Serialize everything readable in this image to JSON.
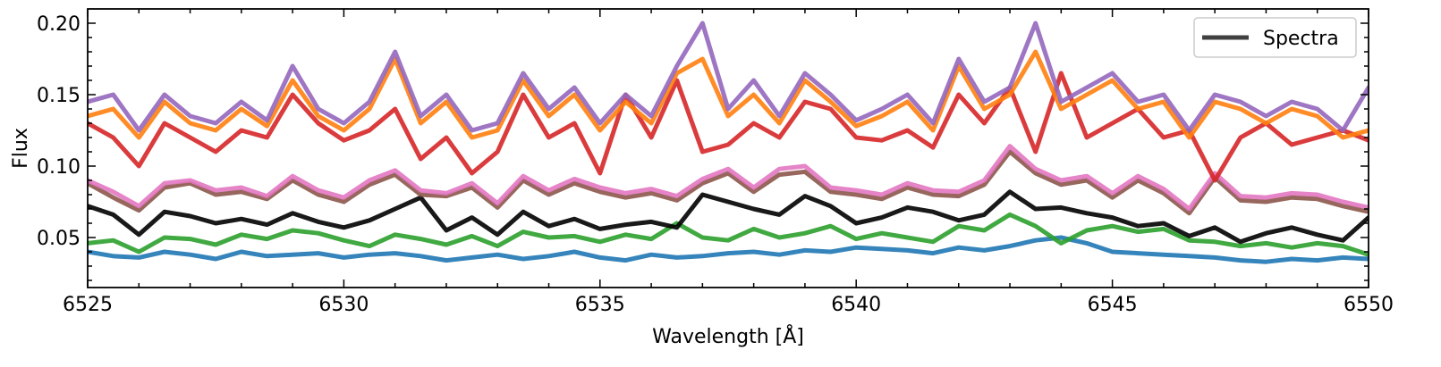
{
  "chart_data": {
    "type": "line",
    "title": "",
    "xlabel": "Wavelength [Å]",
    "ylabel": "Flux",
    "xlim": [
      6525,
      6550
    ],
    "ylim": [
      0.015,
      0.21
    ],
    "x_ticks": [
      6525,
      6530,
      6535,
      6540,
      6545,
      6550
    ],
    "x_tick_labels": [
      "6525",
      "6530",
      "6535",
      "6540",
      "6545",
      "6550"
    ],
    "y_ticks": [
      0.05,
      0.1,
      0.15,
      0.2
    ],
    "y_tick_labels": [
      "0.05",
      "0.10",
      "0.15",
      "0.20"
    ],
    "grid": false,
    "legend": {
      "position": "top-right",
      "entries": [
        {
          "label": "Spectra",
          "color": "#404040"
        }
      ]
    },
    "x": [
      6525.0,
      6525.5,
      6526.0,
      6526.5,
      6527.0,
      6527.5,
      6528.0,
      6528.5,
      6529.0,
      6529.5,
      6530.0,
      6530.5,
      6531.0,
      6531.5,
      6532.0,
      6532.5,
      6533.0,
      6533.5,
      6534.0,
      6534.5,
      6535.0,
      6535.5,
      6536.0,
      6536.5,
      6537.0,
      6537.5,
      6538.0,
      6538.5,
      6539.0,
      6539.5,
      6540.0,
      6540.5,
      6541.0,
      6541.5,
      6542.0,
      6542.5,
      6543.0,
      6543.5,
      6544.0,
      6544.5,
      6545.0,
      6545.5,
      6546.0,
      6546.5,
      6547.0,
      6547.5,
      6548.0,
      6548.5,
      6549.0,
      6549.5,
      6550.0
    ],
    "series": [
      {
        "color": "#1f77b4",
        "values": [
          0.04,
          0.037,
          0.036,
          0.04,
          0.038,
          0.035,
          0.04,
          0.037,
          0.038,
          0.039,
          0.036,
          0.038,
          0.039,
          0.037,
          0.034,
          0.036,
          0.038,
          0.035,
          0.037,
          0.04,
          0.036,
          0.034,
          0.038,
          0.036,
          0.037,
          0.039,
          0.04,
          0.038,
          0.041,
          0.04,
          0.043,
          0.042,
          0.041,
          0.039,
          0.043,
          0.041,
          0.044,
          0.048,
          0.05,
          0.046,
          0.04,
          0.039,
          0.038,
          0.037,
          0.036,
          0.034,
          0.033,
          0.035,
          0.034,
          0.036,
          0.035
        ]
      },
      {
        "color": "#2ca02c",
        "values": [
          0.046,
          0.048,
          0.04,
          0.05,
          0.049,
          0.045,
          0.052,
          0.049,
          0.055,
          0.053,
          0.048,
          0.044,
          0.052,
          0.049,
          0.045,
          0.051,
          0.044,
          0.054,
          0.05,
          0.051,
          0.047,
          0.052,
          0.049,
          0.06,
          0.05,
          0.048,
          0.056,
          0.05,
          0.053,
          0.058,
          0.049,
          0.053,
          0.05,
          0.047,
          0.058,
          0.055,
          0.066,
          0.058,
          0.046,
          0.055,
          0.058,
          0.054,
          0.056,
          0.048,
          0.047,
          0.044,
          0.046,
          0.043,
          0.046,
          0.044,
          0.038
        ]
      },
      {
        "color": "#000000",
        "values": [
          0.072,
          0.066,
          0.052,
          0.068,
          0.065,
          0.06,
          0.063,
          0.059,
          0.067,
          0.061,
          0.057,
          0.062,
          0.07,
          0.078,
          0.055,
          0.064,
          0.052,
          0.068,
          0.058,
          0.063,
          0.056,
          0.059,
          0.061,
          0.057,
          0.08,
          0.075,
          0.07,
          0.066,
          0.079,
          0.072,
          0.06,
          0.064,
          0.071,
          0.068,
          0.062,
          0.066,
          0.082,
          0.07,
          0.071,
          0.067,
          0.064,
          0.058,
          0.06,
          0.051,
          0.057,
          0.047,
          0.053,
          0.057,
          0.052,
          0.048,
          0.064
        ]
      },
      {
        "color": "#8c564b",
        "values": [
          0.088,
          0.078,
          0.069,
          0.085,
          0.088,
          0.08,
          0.082,
          0.077,
          0.09,
          0.08,
          0.075,
          0.087,
          0.094,
          0.08,
          0.079,
          0.085,
          0.071,
          0.09,
          0.08,
          0.088,
          0.082,
          0.078,
          0.081,
          0.076,
          0.088,
          0.095,
          0.082,
          0.094,
          0.096,
          0.082,
          0.08,
          0.077,
          0.085,
          0.08,
          0.079,
          0.087,
          0.11,
          0.095,
          0.087,
          0.09,
          0.078,
          0.09,
          0.081,
          0.067,
          0.092,
          0.076,
          0.075,
          0.078,
          0.077,
          0.072,
          0.068
        ]
      },
      {
        "color": "#e377c2",
        "values": [
          0.09,
          0.082,
          0.072,
          0.088,
          0.09,
          0.083,
          0.085,
          0.079,
          0.093,
          0.083,
          0.078,
          0.09,
          0.097,
          0.083,
          0.081,
          0.088,
          0.074,
          0.093,
          0.083,
          0.091,
          0.085,
          0.081,
          0.084,
          0.079,
          0.091,
          0.098,
          0.085,
          0.098,
          0.1,
          0.085,
          0.083,
          0.08,
          0.088,
          0.083,
          0.082,
          0.09,
          0.114,
          0.098,
          0.09,
          0.093,
          0.081,
          0.093,
          0.084,
          0.07,
          0.095,
          0.079,
          0.078,
          0.081,
          0.08,
          0.075,
          0.071
        ]
      },
      {
        "color": "#d62728",
        "values": [
          0.13,
          0.12,
          0.1,
          0.13,
          0.12,
          0.11,
          0.125,
          0.12,
          0.15,
          0.13,
          0.118,
          0.125,
          0.14,
          0.105,
          0.12,
          0.095,
          0.11,
          0.15,
          0.12,
          0.13,
          0.095,
          0.15,
          0.12,
          0.16,
          0.11,
          0.115,
          0.13,
          0.12,
          0.145,
          0.14,
          0.12,
          0.118,
          0.125,
          0.113,
          0.15,
          0.13,
          0.155,
          0.11,
          0.165,
          0.12,
          0.13,
          0.14,
          0.12,
          0.125,
          0.09,
          0.12,
          0.13,
          0.115,
          0.12,
          0.125,
          0.118
        ]
      },
      {
        "color": "#ff7f0e",
        "values": [
          0.135,
          0.14,
          0.12,
          0.145,
          0.13,
          0.125,
          0.14,
          0.128,
          0.16,
          0.135,
          0.125,
          0.14,
          0.175,
          0.13,
          0.145,
          0.12,
          0.125,
          0.16,
          0.135,
          0.15,
          0.125,
          0.145,
          0.13,
          0.165,
          0.175,
          0.135,
          0.15,
          0.13,
          0.16,
          0.145,
          0.128,
          0.135,
          0.145,
          0.125,
          0.17,
          0.14,
          0.15,
          0.18,
          0.14,
          0.15,
          0.16,
          0.14,
          0.145,
          0.12,
          0.145,
          0.14,
          0.13,
          0.14,
          0.135,
          0.12,
          0.125
        ]
      },
      {
        "color": "#9467bd",
        "values": [
          0.145,
          0.15,
          0.125,
          0.15,
          0.135,
          0.13,
          0.145,
          0.132,
          0.17,
          0.14,
          0.13,
          0.145,
          0.18,
          0.135,
          0.15,
          0.125,
          0.13,
          0.165,
          0.14,
          0.155,
          0.13,
          0.15,
          0.135,
          0.17,
          0.2,
          0.14,
          0.16,
          0.135,
          0.165,
          0.15,
          0.132,
          0.14,
          0.15,
          0.13,
          0.175,
          0.145,
          0.155,
          0.2,
          0.145,
          0.155,
          0.165,
          0.145,
          0.15,
          0.125,
          0.15,
          0.145,
          0.135,
          0.145,
          0.14,
          0.125,
          0.155
        ]
      }
    ]
  }
}
